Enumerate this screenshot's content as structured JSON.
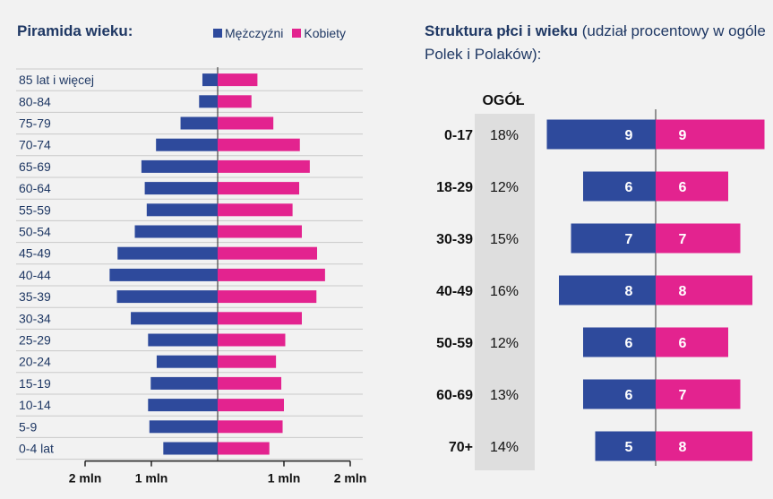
{
  "colors": {
    "men": "#2e4a9c",
    "women": "#e3238f",
    "text": "#1f3864",
    "total_bg": "#dedede"
  },
  "pyramid": {
    "title": "Piramida wieku:",
    "legend": [
      {
        "label": "Mężczyźni",
        "color": "#2e4a9c"
      },
      {
        "label": "Kobiety",
        "color": "#e3238f"
      }
    ],
    "x_tick_labels": [
      "2 mln",
      "1 mln",
      "1 mln",
      "2 mln"
    ]
  },
  "structure": {
    "title_bold": "Struktura płci i wieku",
    "title_rest": " (udział procentowy w ogóle Polek i Polaków):",
    "total_header": "OGÓŁ"
  },
  "chart_data": [
    {
      "type": "bar",
      "title": "Piramida wieku:",
      "categories": [
        "85 lat i więcej",
        "80-84",
        "75-79",
        "70-74",
        "65-69",
        "60-64",
        "55-59",
        "50-54",
        "45-49",
        "40-44",
        "35-39",
        "30-34",
        "25-29",
        "20-24",
        "15-19",
        "10-14",
        "5-9",
        "0-4 lat"
      ],
      "series": [
        {
          "name": "Mężczyźni",
          "values": [
            0.23,
            0.28,
            0.56,
            0.93,
            1.15,
            1.1,
            1.07,
            1.25,
            1.51,
            1.63,
            1.52,
            1.31,
            1.05,
            0.92,
            1.01,
            1.05,
            1.03,
            0.82
          ]
        },
        {
          "name": "Kobiety",
          "values": [
            0.6,
            0.51,
            0.84,
            1.24,
            1.39,
            1.23,
            1.13,
            1.27,
            1.5,
            1.62,
            1.49,
            1.27,
            1.02,
            0.88,
            0.96,
            1.0,
            0.98,
            0.78
          ]
        }
      ],
      "xlim": [
        -2,
        2
      ],
      "grid": true
    },
    {
      "type": "bar",
      "title": "Struktura płci i wieku (udział procentowy w ogóle Polek i Polaków):",
      "categories": [
        "0-17",
        "18-29",
        "30-39",
        "40-49",
        "50-59",
        "60-69",
        "70+"
      ],
      "total_percent_labels": [
        "18%",
        "12%",
        "15%",
        "16%",
        "12%",
        "13%",
        "14%"
      ],
      "series": [
        {
          "name": "Mężczyźni",
          "values": [
            9,
            6,
            7,
            8,
            6,
            6,
            5
          ]
        },
        {
          "name": "Kobiety",
          "values": [
            9,
            6,
            7,
            8,
            6,
            7,
            8
          ]
        }
      ]
    }
  ]
}
